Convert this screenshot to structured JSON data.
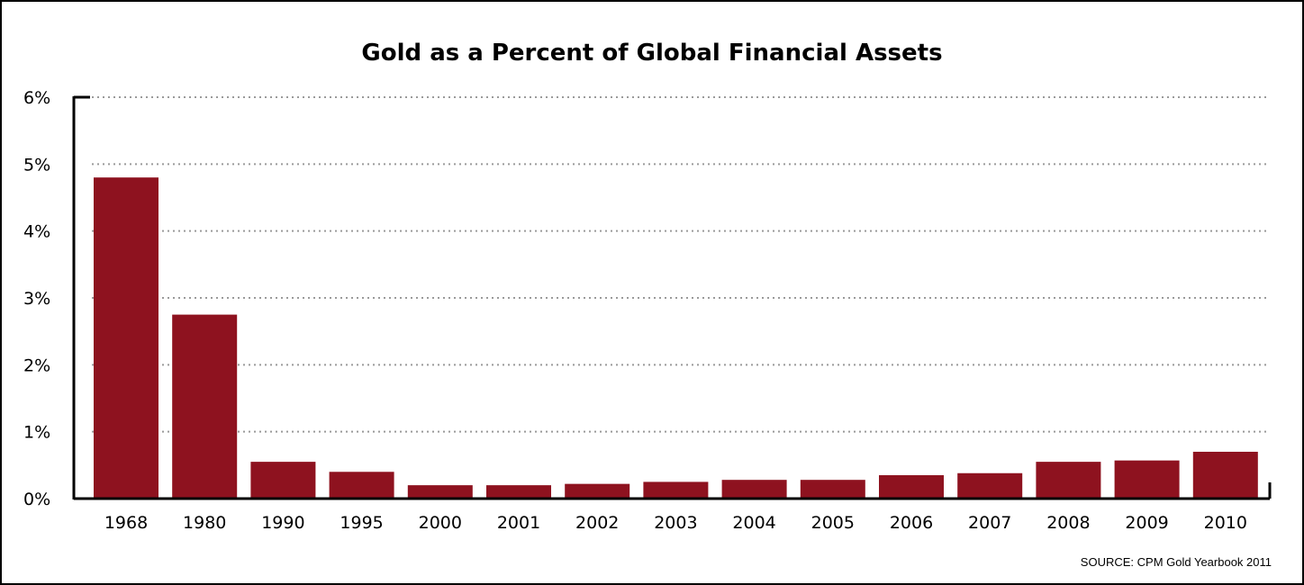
{
  "chart_data": {
    "type": "bar",
    "title": "Gold as a Percent of Global Financial Assets",
    "xlabel": "",
    "ylabel": "",
    "categories": [
      "1968",
      "1980",
      "1990",
      "1995",
      "2000",
      "2001",
      "2002",
      "2003",
      "2004",
      "2005",
      "2006",
      "2007",
      "2008",
      "2009",
      "2010"
    ],
    "values": [
      4.8,
      2.75,
      0.55,
      0.4,
      0.2,
      0.2,
      0.22,
      0.25,
      0.28,
      0.28,
      0.35,
      0.38,
      0.55,
      0.57,
      0.7
    ],
    "ylim": [
      0,
      6
    ],
    "yticks": [
      0,
      1,
      2,
      3,
      4,
      5,
      6
    ],
    "ytick_labels": [
      "0%",
      "1%",
      "2%",
      "3%",
      "4%",
      "5%",
      "6%"
    ],
    "grid": true,
    "legend": "none",
    "bar_color": "#8e121f",
    "source": "SOURCE: CPM Gold Yearbook 2011"
  }
}
